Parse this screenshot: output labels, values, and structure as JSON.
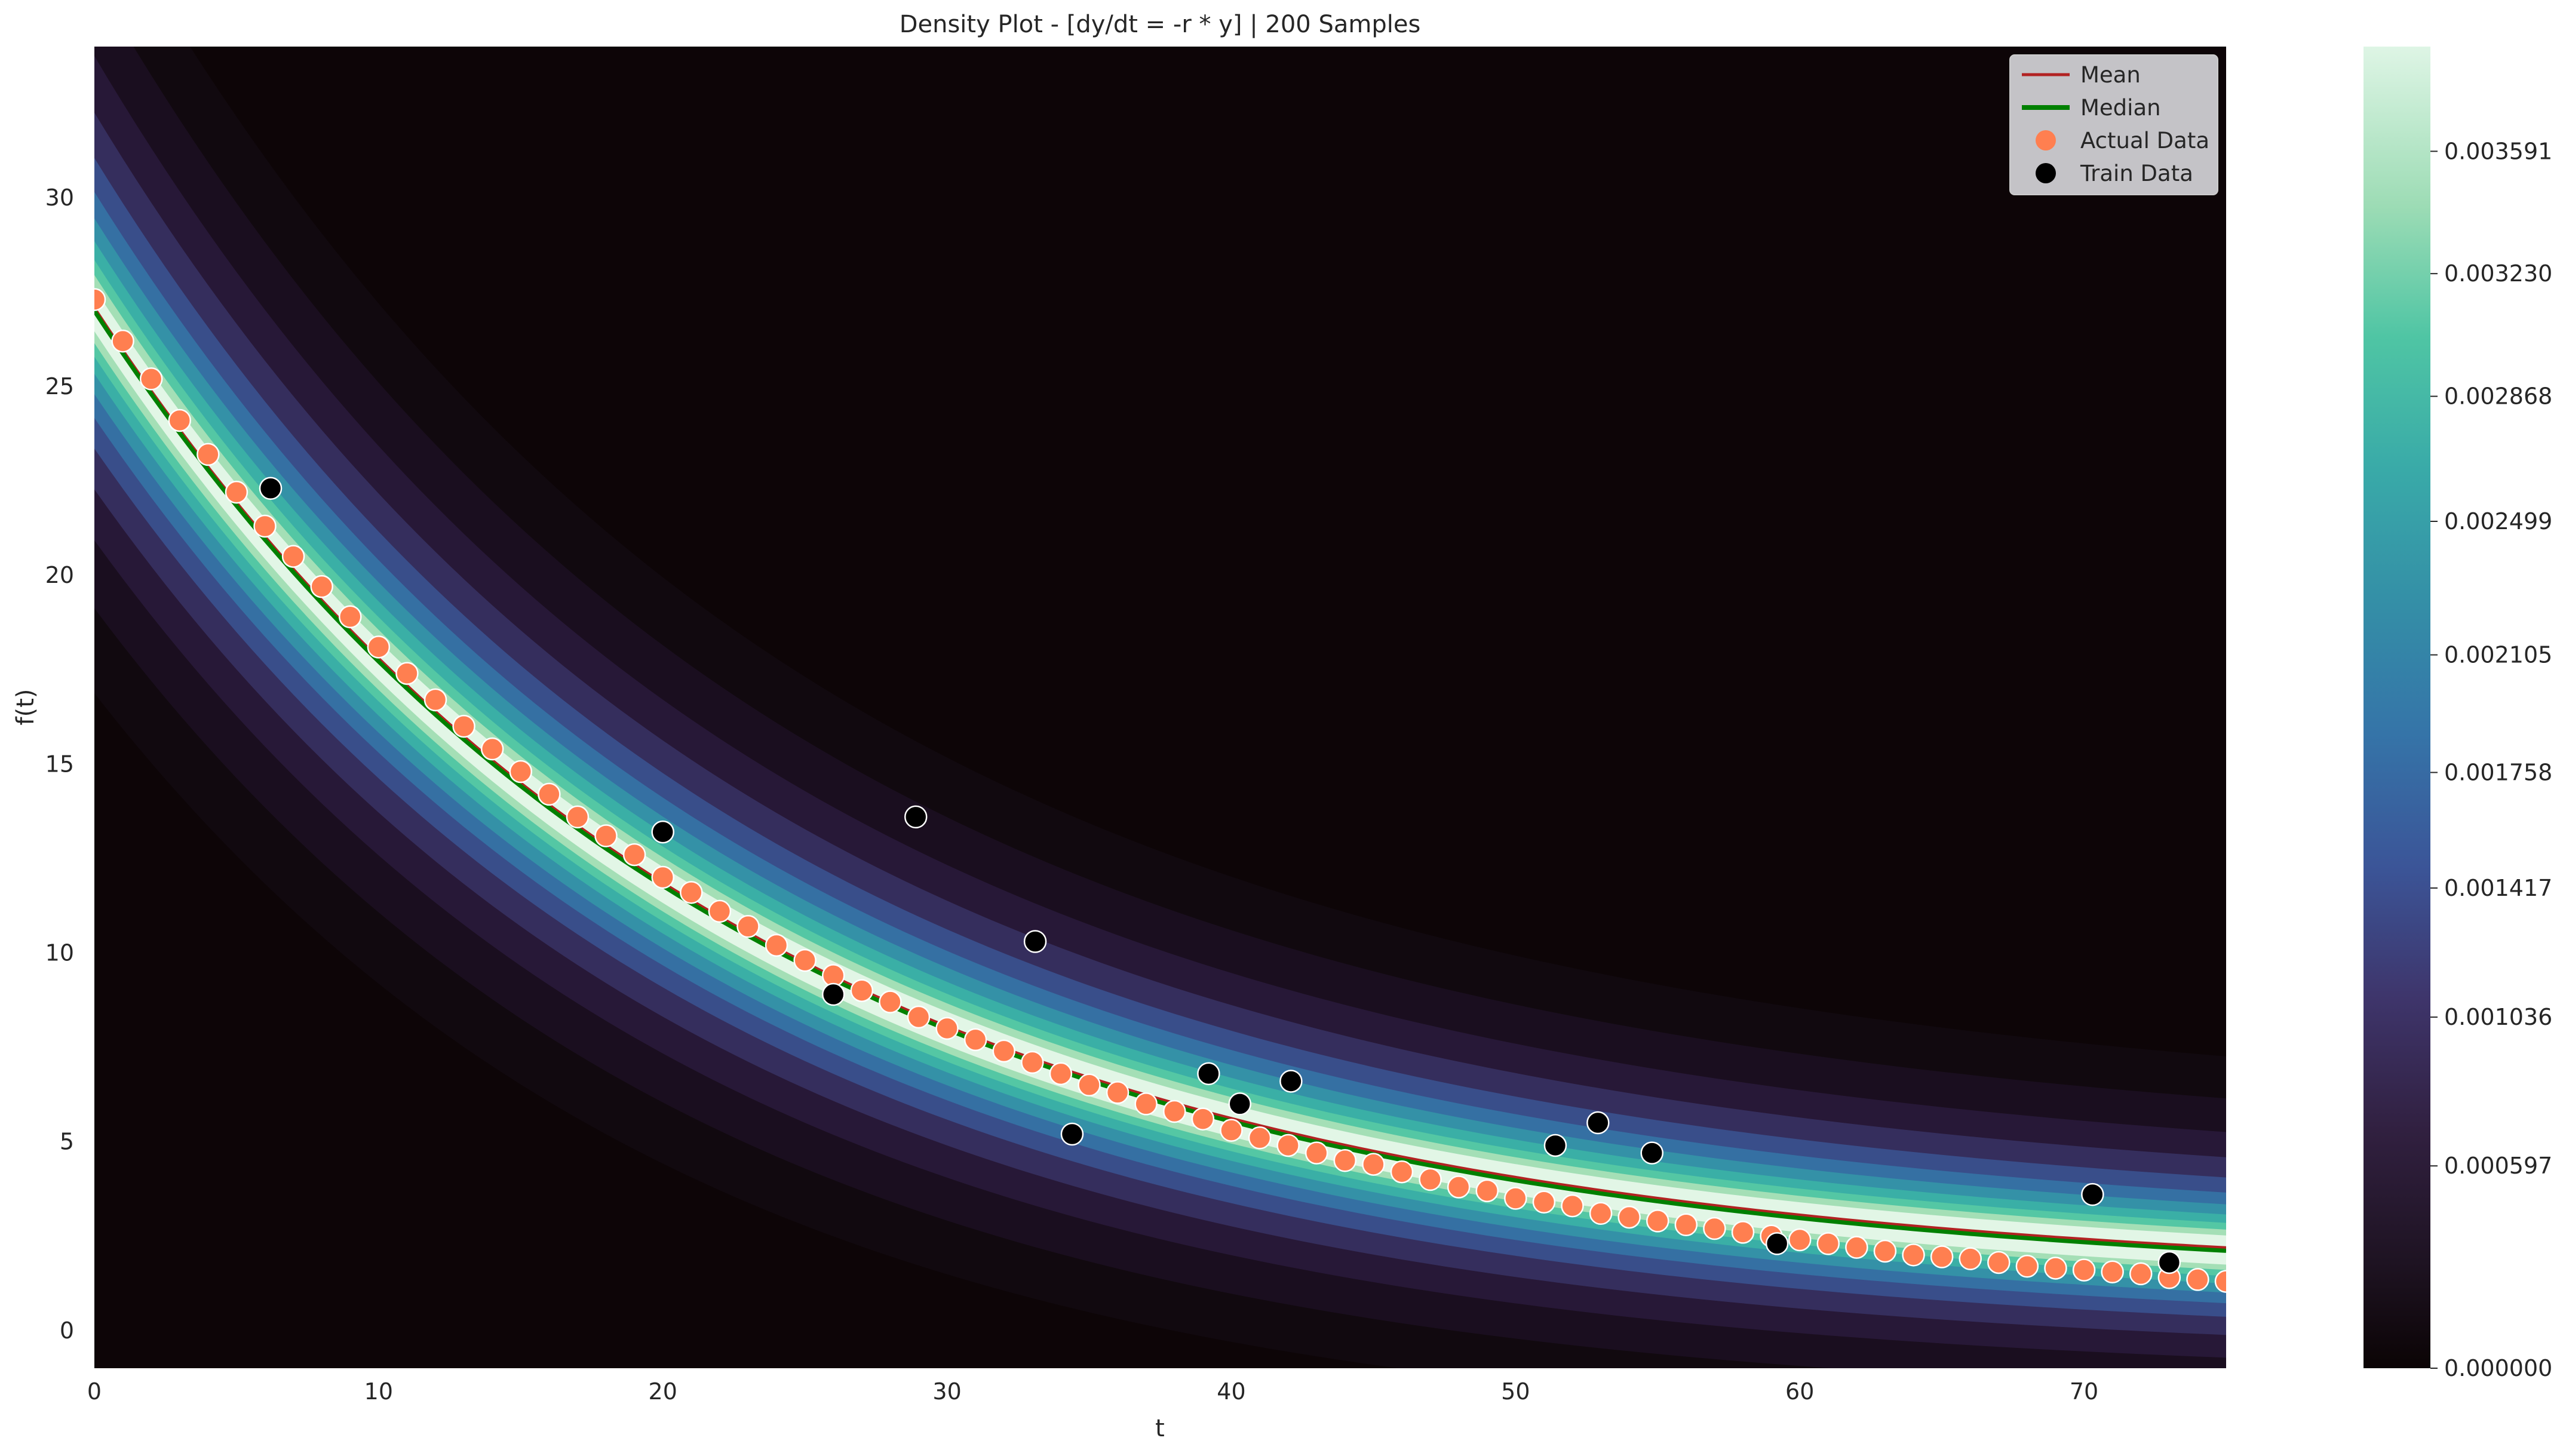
{
  "chart_data": {
    "type": "density_line_scatter",
    "title": "Density Plot - [dy/dt = -r * y] | 200 Samples",
    "xlabel": "t",
    "ylabel": "f(t)",
    "xlim": [
      0,
      75
    ],
    "ylim": [
      -1,
      34
    ],
    "x_ticks": [
      0,
      10,
      20,
      30,
      40,
      50,
      60,
      70
    ],
    "y_ticks": [
      0,
      5,
      10,
      15,
      20,
      25,
      30
    ],
    "grid": false,
    "legend": {
      "placement": "top-right",
      "entries": [
        {
          "label": "Mean",
          "kind": "line",
          "color": "#b22222"
        },
        {
          "label": "Median",
          "kind": "line",
          "color": "#008000"
        },
        {
          "label": "Actual Data",
          "kind": "marker",
          "color": "#ff7f50"
        },
        {
          "label": "Train Data",
          "kind": "marker",
          "color": "#000000"
        }
      ]
    },
    "colorbar": {
      "colormap": "mako-like",
      "ticks": [
        "0.000000",
        "0.000597",
        "0.001036",
        "0.001417",
        "0.001758",
        "0.002105",
        "0.002499",
        "0.002868",
        "0.003230",
        "0.003591"
      ],
      "tick_values": [
        0.0,
        0.000597,
        0.001036,
        0.001417,
        0.001758,
        0.002105,
        0.002499,
        0.002868,
        0.00323,
        0.003591
      ],
      "range": [
        0.0,
        0.0039
      ]
    },
    "curve": {
      "a": 27.0,
      "b": 1.2,
      "k": 0.0446
    },
    "series": [
      {
        "name": "Mean",
        "type": "line",
        "color": "#b22222",
        "x": [
          0,
          5,
          10,
          15,
          20,
          25,
          30,
          35,
          40,
          45,
          50,
          55,
          60,
          65,
          70,
          75
        ],
        "y": [
          27.0,
          22.0,
          18.0,
          14.7,
          12.0,
          9.9,
          8.2,
          6.7,
          5.6,
          4.7,
          4.0,
          3.4,
          2.9,
          2.5,
          2.2,
          1.6
        ]
      },
      {
        "name": "Median",
        "type": "line",
        "color": "#008000",
        "x": [
          0,
          5,
          10,
          15,
          20,
          25,
          30,
          35,
          40,
          45,
          50,
          55,
          60,
          65,
          70,
          75
        ],
        "y": [
          26.9,
          21.9,
          17.9,
          14.6,
          11.9,
          9.8,
          8.1,
          6.7,
          5.6,
          4.6,
          3.9,
          3.3,
          2.8,
          2.4,
          2.1,
          1.5
        ]
      },
      {
        "name": "Actual Data",
        "type": "scatter",
        "color": "#ff7f50",
        "x": [
          0,
          1,
          2,
          3,
          4,
          5,
          6,
          7,
          8,
          9,
          10,
          11,
          12,
          13,
          14,
          15,
          16,
          17,
          18,
          19,
          20,
          21,
          22,
          23,
          24,
          25,
          26,
          27,
          28,
          29,
          30,
          31,
          32,
          33,
          34,
          35,
          36,
          37,
          38,
          39,
          40,
          41,
          42,
          43,
          44,
          45,
          46,
          47,
          48,
          49,
          50,
          51,
          52,
          53,
          54,
          55,
          56,
          57,
          58,
          59,
          60,
          61,
          62,
          63,
          64,
          65,
          66,
          67,
          68,
          69,
          70,
          71,
          72,
          73,
          74,
          75
        ],
        "y": [
          27.3,
          26.2,
          25.2,
          24.1,
          23.2,
          22.2,
          21.3,
          20.5,
          19.7,
          18.9,
          18.1,
          17.4,
          16.7,
          16.0,
          15.4,
          14.8,
          14.2,
          13.6,
          13.1,
          12.6,
          12.0,
          11.6,
          11.1,
          10.7,
          10.2,
          9.8,
          9.4,
          9.0,
          8.7,
          8.3,
          8.0,
          7.7,
          7.4,
          7.1,
          6.8,
          6.5,
          6.3,
          6.0,
          5.8,
          5.6,
          5.3,
          5.1,
          4.9,
          4.7,
          4.5,
          4.4,
          4.2,
          4.0,
          3.8,
          3.7,
          3.5,
          3.4,
          3.3,
          3.1,
          3.0,
          2.9,
          2.8,
          2.7,
          2.6,
          2.5,
          2.4,
          2.3,
          2.2,
          2.1,
          2.0,
          1.95,
          1.9,
          1.8,
          1.7,
          1.65,
          1.6,
          1.55,
          1.5,
          1.4,
          1.35,
          1.3
        ]
      },
      {
        "name": "Train Data",
        "type": "scatter",
        "color": "#000000",
        "x": [
          6.2,
          20.0,
          26.0,
          28.9,
          33.1,
          34.4,
          39.2,
          40.3,
          42.1,
          51.4,
          52.9,
          54.8,
          59.2,
          70.3,
          73.0
        ],
        "y": [
          22.3,
          13.2,
          8.9,
          13.6,
          10.3,
          5.2,
          6.8,
          6.0,
          6.6,
          4.9,
          5.5,
          4.7,
          2.3,
          3.6,
          1.8
        ]
      }
    ]
  }
}
